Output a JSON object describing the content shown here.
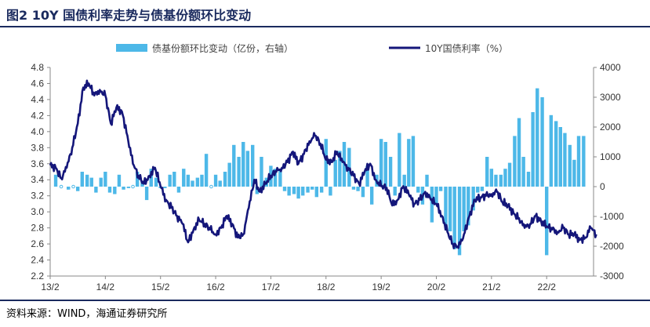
{
  "header": {
    "title": "图2  10Y 国债利率走势与债基份额环比变动"
  },
  "footer": {
    "source": "资料来源：WIND，海通证券研究所"
  },
  "chart_data": {
    "type": "bar+line",
    "title": "10Y 国债利率走势与债基份额环比变动",
    "x_tick_labels": [
      "13/2",
      "14/2",
      "15/2",
      "16/2",
      "17/2",
      "18/2",
      "19/2",
      "20/2",
      "21/2",
      "22/2"
    ],
    "left_axis": {
      "label": "10Y国债利率（%）",
      "range": [
        2.2,
        4.8
      ],
      "ticks": [
        "2.2",
        "2.4",
        "2.6",
        "2.8",
        "3.0",
        "3.2",
        "3.4",
        "3.6",
        "3.8",
        "4.0",
        "4.2",
        "4.4",
        "4.6",
        "4.8"
      ]
    },
    "right_axis": {
      "label": "债基份额环比变动（亿份，右轴）",
      "range": [
        -3000,
        4000
      ],
      "ticks": [
        "-3000",
        "-2000",
        "-1000",
        "0",
        "1000",
        "2000",
        "3000",
        "4000"
      ]
    },
    "colors": {
      "bar": "#4db8e8",
      "line": "#14167a",
      "axis": "#888888"
    },
    "series": [
      {
        "name": "债基份额环比变动（亿份，右轴）",
        "kind": "bar",
        "axis": "right",
        "x": [
          13.1,
          13.2,
          13.33,
          13.42,
          13.5,
          13.58,
          13.67,
          13.75,
          13.83,
          13.92,
          14.0,
          14.08,
          14.17,
          14.25,
          14.33,
          14.42,
          14.5,
          14.58,
          14.67,
          14.75,
          14.83,
          14.92,
          15.0,
          15.08,
          15.17,
          15.25,
          15.33,
          15.42,
          15.5,
          15.58,
          15.67,
          15.75,
          15.83,
          15.92,
          16.0,
          16.08,
          16.17,
          16.25,
          16.33,
          16.42,
          16.5,
          16.58,
          16.67,
          16.75,
          16.83,
          16.92,
          17.0,
          17.08,
          17.17,
          17.25,
          17.33,
          17.42,
          17.5,
          17.58,
          17.67,
          17.75,
          17.83,
          17.92,
          18.0,
          18.08,
          18.17,
          18.25,
          18.33,
          18.42,
          18.5,
          18.58,
          18.67,
          18.75,
          18.83,
          18.92,
          19.0,
          19.08,
          19.17,
          19.25,
          19.33,
          19.42,
          19.5,
          19.58,
          19.67,
          19.75,
          19.83,
          19.92,
          20.0,
          20.08,
          20.17,
          20.25,
          20.33,
          20.42,
          20.5,
          20.58,
          20.67,
          20.75,
          20.83,
          20.92,
          21.0,
          21.08,
          21.17,
          21.25,
          21.33,
          21.42,
          21.5,
          21.58,
          21.67,
          21.75,
          21.83,
          21.92,
          22.0,
          22.08,
          22.17,
          22.25,
          22.33,
          22.42,
          22.5,
          22.58,
          22.67
        ],
        "values": [
          400,
          0,
          -100,
          0,
          -150,
          500,
          400,
          300,
          -200,
          300,
          500,
          -200,
          -250,
          400,
          -100,
          -50,
          0,
          500,
          200,
          -450,
          600,
          300,
          -50,
          -50,
          400,
          500,
          -200,
          600,
          400,
          200,
          300,
          400,
          1100,
          0,
          400,
          200,
          500,
          800,
          1400,
          1000,
          1500,
          1200,
          1400,
          -250,
          1000,
          300,
          700,
          600,
          600,
          -150,
          -300,
          -250,
          -400,
          -300,
          -200,
          -100,
          -350,
          -200,
          1600,
          -300,
          900,
          1200,
          1500,
          1300,
          -100,
          -150,
          -350,
          700,
          -600,
          400,
          1600,
          1500,
          1000,
          -300,
          1800,
          400,
          1600,
          1700,
          -200,
          -600,
          400,
          -1200,
          -600,
          -150,
          -1300,
          -1500,
          -2100,
          -2300,
          -1500,
          -1300,
          -800,
          -200,
          -150,
          1000,
          600,
          400,
          400,
          600,
          800,
          1700,
          2300,
          1000,
          500,
          2500,
          3300,
          3000,
          -2300,
          2400,
          2200,
          2000,
          1800,
          1400,
          900,
          1700,
          1700
        ]
      },
      {
        "name": "10Y国债利率（%）",
        "kind": "line",
        "axis": "left",
        "x": [
          13.0,
          13.1,
          13.2,
          13.3,
          13.4,
          13.5,
          13.6,
          13.7,
          13.8,
          13.9,
          14.0,
          14.1,
          14.2,
          14.3,
          14.4,
          14.5,
          14.6,
          14.7,
          14.8,
          14.9,
          15.0,
          15.1,
          15.2,
          15.3,
          15.4,
          15.5,
          15.6,
          15.7,
          15.8,
          15.9,
          16.0,
          16.1,
          16.2,
          16.3,
          16.4,
          16.5,
          16.6,
          16.7,
          16.8,
          16.9,
          17.0,
          17.1,
          17.2,
          17.3,
          17.4,
          17.5,
          17.6,
          17.7,
          17.8,
          17.9,
          18.0,
          18.1,
          18.2,
          18.3,
          18.4,
          18.5,
          18.6,
          18.7,
          18.8,
          18.9,
          19.0,
          19.1,
          19.2,
          19.3,
          19.4,
          19.5,
          19.6,
          19.7,
          19.8,
          19.9,
          20.0,
          20.1,
          20.2,
          20.3,
          20.4,
          20.5,
          20.6,
          20.7,
          20.8,
          20.9,
          21.0,
          21.1,
          21.2,
          21.3,
          21.4,
          21.5,
          21.6,
          21.7,
          21.8,
          21.9,
          22.0,
          22.1,
          22.2,
          22.3,
          22.4,
          22.5,
          22.6,
          22.7,
          22.8,
          22.9
        ],
        "values": [
          3.58,
          3.55,
          3.42,
          3.55,
          3.8,
          4.1,
          4.55,
          4.6,
          4.45,
          4.52,
          4.45,
          4.1,
          4.3,
          4.25,
          3.95,
          3.6,
          3.45,
          3.35,
          3.45,
          3.55,
          3.32,
          3.15,
          3.05,
          2.95,
          2.85,
          2.62,
          2.78,
          2.9,
          2.85,
          2.78,
          2.72,
          2.8,
          2.95,
          2.85,
          2.68,
          2.72,
          3.05,
          3.4,
          3.25,
          3.35,
          3.45,
          3.5,
          3.55,
          3.62,
          3.75,
          3.6,
          3.72,
          3.88,
          3.95,
          3.85,
          3.65,
          3.62,
          3.75,
          3.62,
          3.55,
          3.45,
          3.35,
          3.5,
          3.6,
          3.4,
          3.32,
          3.3,
          3.08,
          3.15,
          3.32,
          3.22,
          3.1,
          3.15,
          3.25,
          3.15,
          3.1,
          2.95,
          2.75,
          2.6,
          2.55,
          2.72,
          2.95,
          3.15,
          3.18,
          3.2,
          3.22,
          3.25,
          3.12,
          3.08,
          2.98,
          2.92,
          2.8,
          2.85,
          2.95,
          2.88,
          2.82,
          2.78,
          2.75,
          2.8,
          2.72,
          2.72,
          2.65,
          2.68,
          2.8,
          2.72
        ]
      }
    ]
  }
}
